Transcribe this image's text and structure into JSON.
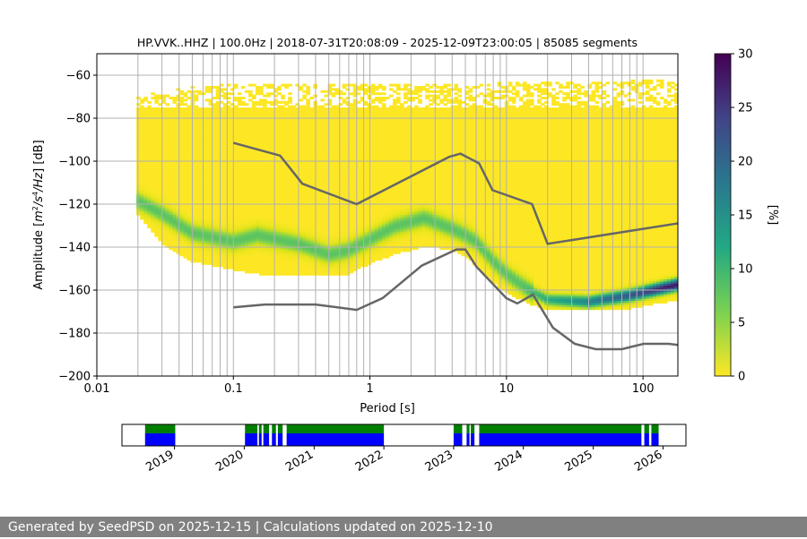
{
  "footer": "Generated by SeedPSD on 2025-12-15 | Calculations updated on 2025-12-10",
  "chart_data": [
    {
      "type": "heatmap",
      "title": "HP.VVK..HHZ | 100.0Hz | 2018-07-31T20:08:09 - 2025-12-09T23:00:05 | 85085 segments",
      "xlabel": "Period [s]",
      "ylabel_parts": [
        "Amplitude [",
        "m",
        "2",
        "/s",
        "4",
        "/Hz",
        "] [dB]"
      ],
      "x_scale": "log",
      "xlim": [
        0.01,
        180
      ],
      "ylim": [
        -200,
        -50
      ],
      "x_ticks": [
        0.01,
        0.1,
        1,
        10,
        100
      ],
      "x_tick_labels": [
        "0.01",
        "0.1",
        "1",
        "10",
        "100"
      ],
      "y_ticks": [
        -200,
        -180,
        -160,
        -140,
        -120,
        -100,
        -80,
        -60
      ],
      "y_tick_labels": [
        "−200",
        "−180",
        "−160",
        "−140",
        "−120",
        "−100",
        "−80",
        "−60"
      ],
      "grid_periods": [
        0.02,
        0.03,
        0.04,
        0.05,
        0.06,
        0.07,
        0.08,
        0.09,
        0.1,
        0.2,
        0.3,
        0.4,
        0.5,
        0.6,
        0.7,
        0.8,
        0.9,
        1,
        2,
        3,
        4,
        5,
        6,
        7,
        8,
        9,
        10,
        20,
        30,
        40,
        50,
        60,
        70,
        80,
        90,
        100
      ],
      "density_ridge": {
        "period": [
          0.02,
          0.03,
          0.05,
          0.1,
          0.15,
          0.3,
          0.5,
          0.7,
          1,
          1.5,
          2.5,
          4,
          5,
          6,
          8,
          10,
          15,
          20,
          40,
          80,
          180
        ],
        "mode_db": [
          -118,
          -124,
          -133,
          -137,
          -134,
          -138,
          -143,
          -141,
          -136,
          -130,
          -126,
          -131,
          -134,
          -137,
          -146,
          -152,
          -160,
          -164,
          -165,
          -162,
          -157
        ],
        "upper_edge_db": [
          -70,
          -68,
          -66,
          -64,
          -64,
          -64,
          -64,
          -64,
          -64,
          -64,
          -64,
          -64,
          -64,
          -64,
          -64,
          -63,
          -63,
          -63,
          -64,
          -63,
          -62
        ],
        "lower_edge_db": [
          -123,
          -137,
          -145,
          -149,
          -151,
          -152,
          -152,
          -151,
          -146,
          -142,
          -138,
          -140,
          -143,
          -147,
          -155,
          -160,
          -165,
          -168,
          -168,
          -167,
          -163
        ]
      },
      "nhnm": {
        "name": "NHNM",
        "period": [
          0.1,
          0.22,
          0.32,
          0.8,
          3.8,
          4.6,
          6.3,
          7.9,
          15.4,
          20,
          354.8
        ],
        "db": [
          -91.5,
          -97.4,
          -110.5,
          -120,
          -98,
          -96.5,
          -101,
          -113.5,
          -120,
          -138.5,
          -126
        ]
      },
      "nlnm": {
        "name": "NLNM",
        "period": [
          0.1,
          0.17,
          0.4,
          0.8,
          1.24,
          2.4,
          4.3,
          5,
          6,
          10,
          12,
          15.6,
          21.9,
          31.6,
          45,
          70,
          101,
          154,
          328
        ],
        "db": [
          -168,
          -166.7,
          -166.7,
          -169.2,
          -163.7,
          -148.6,
          -141.1,
          -141.1,
          -149,
          -163.8,
          -166.2,
          -162.1,
          -177.5,
          -185,
          -187.5,
          -187.5,
          -185,
          -185,
          -187.5
        ]
      },
      "colorbar": {
        "label": "[%]",
        "range": [
          0,
          30
        ],
        "ticks": [
          0,
          5,
          10,
          15,
          20,
          25,
          30
        ],
        "colors": {
          "low": "#fde725",
          "mid_low": "#5ec962",
          "mid": "#21918c",
          "mid_high": "#3b528b",
          "high": "#440154"
        }
      },
      "colors": {
        "curve": "#666666",
        "grid": "#b0b0b0",
        "empty": "#ffffff"
      }
    },
    {
      "type": "timeline",
      "x_ticks": [
        "2019",
        "2020",
        "2021",
        "2022",
        "2023",
        "2024",
        "2025",
        "2026"
      ],
      "xlim": [
        "2018-04-01",
        "2026-05-01"
      ],
      "rows": [
        {
          "name": "upper",
          "color": "#008000"
        },
        {
          "name": "lower",
          "color": "#0000ff"
        }
      ],
      "segments": [
        [
          "2018-07-31",
          "2019-01-05"
        ],
        [
          "2020-01-05",
          "2020-03-10"
        ],
        [
          "2020-03-18",
          "2020-04-01"
        ],
        [
          "2020-04-10",
          "2020-05-10"
        ],
        [
          "2020-05-25",
          "2020-06-15"
        ],
        [
          "2020-06-25",
          "2020-07-20"
        ],
        [
          "2020-08-10",
          "2022-01-01"
        ],
        [
          "2023-01-01",
          "2023-02-15"
        ],
        [
          "2023-03-10",
          "2023-03-25"
        ],
        [
          "2023-04-01",
          "2023-04-20"
        ],
        [
          "2023-05-15",
          "2025-09-10"
        ],
        [
          "2025-09-25",
          "2025-10-20"
        ],
        [
          "2025-11-01",
          "2025-12-09"
        ]
      ]
    }
  ]
}
